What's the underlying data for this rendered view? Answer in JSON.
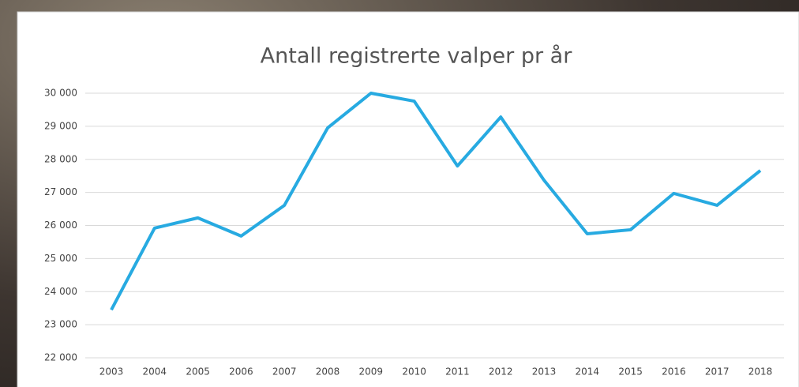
{
  "chart_data": {
    "type": "line",
    "title": "Antall registrerte valper pr år",
    "categories": [
      "2003",
      "2004",
      "2005",
      "2006",
      "2007",
      "2008",
      "2009",
      "2010",
      "2011",
      "2012",
      "2013",
      "2014",
      "2015",
      "2016",
      "2017",
      "2018"
    ],
    "series": [
      {
        "color": "#27aae1",
        "values": [
          23450,
          25920,
          26230,
          25680,
          26610,
          28950,
          30000,
          29760,
          27800,
          29280,
          27370,
          25750,
          25870,
          26970,
          26610,
          27660
        ]
      }
    ],
    "ylim": [
      22000,
      30000
    ],
    "yticks": [
      {
        "value": 22000,
        "label": "22 000"
      },
      {
        "value": 23000,
        "label": "23 000"
      },
      {
        "value": 24000,
        "label": "24 000"
      },
      {
        "value": 25000,
        "label": "25 000"
      },
      {
        "value": 26000,
        "label": "26 000"
      },
      {
        "value": 27000,
        "label": "27 000"
      },
      {
        "value": 28000,
        "label": "28 000"
      },
      {
        "value": 29000,
        "label": "29 000"
      },
      {
        "value": 30000,
        "label": "30 000"
      }
    ],
    "grid": true
  }
}
